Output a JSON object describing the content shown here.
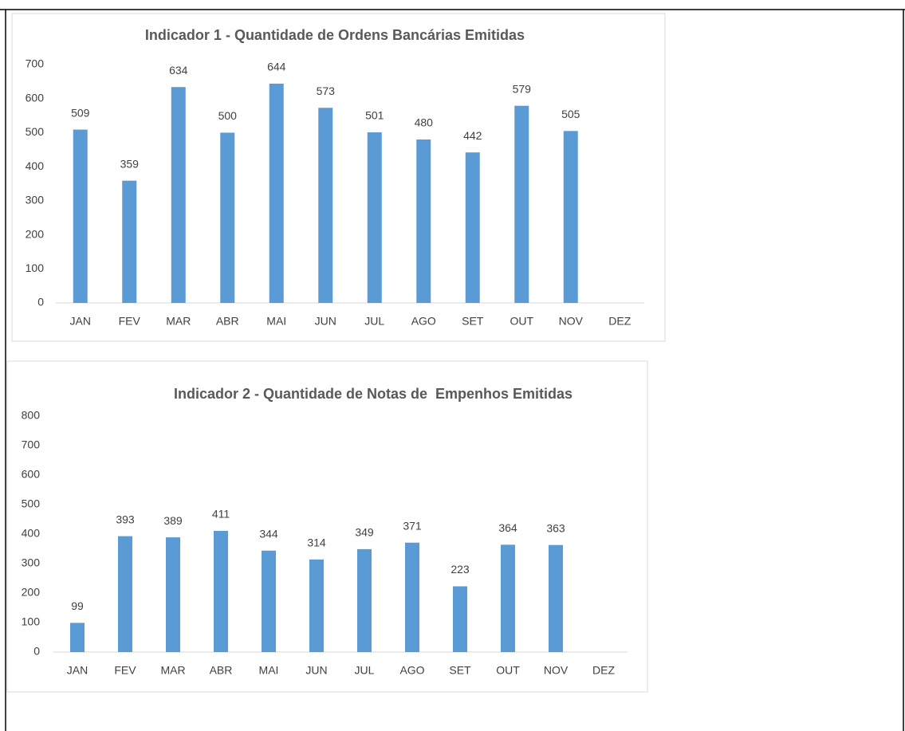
{
  "chart_data": [
    {
      "type": "bar",
      "title": "Indicador 1 - Quantidade de Ordens Bancárias Emitidas",
      "categories": [
        "JAN",
        "FEV",
        "MAR",
        "ABR",
        "MAI",
        "JUN",
        "JUL",
        "AGO",
        "SET",
        "OUT",
        "NOV",
        "DEZ"
      ],
      "values": [
        509,
        359,
        634,
        500,
        644,
        573,
        501,
        480,
        442,
        579,
        505,
        null
      ],
      "color": "#5b9bd5",
      "ylim": [
        0,
        700
      ],
      "yticks": [
        0,
        100,
        200,
        300,
        400,
        500,
        600,
        700
      ],
      "grid": false
    },
    {
      "type": "bar",
      "title": "Indicador 2 - Quantidade de Notas de  Empenhos Emitidas",
      "categories": [
        "JAN",
        "FEV",
        "MAR",
        "ABR",
        "MAI",
        "JUN",
        "JUL",
        "AGO",
        "SET",
        "OUT",
        "NOV",
        "DEZ"
      ],
      "values": [
        99,
        393,
        389,
        411,
        344,
        314,
        349,
        371,
        223,
        364,
        363,
        null
      ],
      "color": "#5b9bd5",
      "ylim": [
        0,
        800
      ],
      "yticks": [
        0,
        100,
        200,
        300,
        400,
        500,
        600,
        700,
        800
      ],
      "grid": false
    }
  ]
}
